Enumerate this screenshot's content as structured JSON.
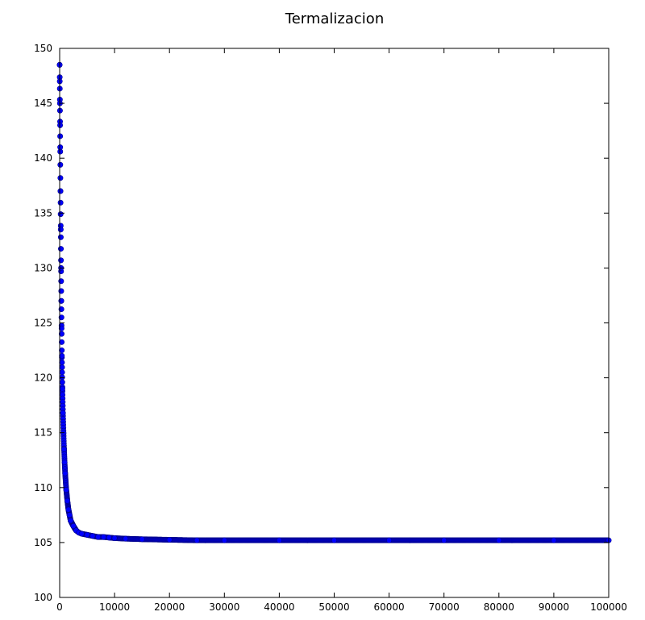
{
  "chart_data": {
    "type": "scatter",
    "title": "Termalizacion",
    "xlabel": "",
    "ylabel": "",
    "xlim": [
      0,
      100000
    ],
    "ylim": [
      100,
      150
    ],
    "grid": false,
    "legend": "none",
    "x_ticks": [
      "0",
      "10000",
      "20000",
      "30000",
      "40000",
      "50000",
      "60000",
      "70000",
      "80000",
      "90000",
      "100000"
    ],
    "y_ticks": [
      "100",
      "105",
      "110",
      "115",
      "120",
      "125",
      "130",
      "135",
      "140",
      "145",
      "150"
    ],
    "marker_color": "#0000ff",
    "series": [
      {
        "x": [
          0,
          20,
          50,
          80,
          100,
          150,
          200,
          250,
          300,
          350,
          400,
          500,
          600,
          700,
          800,
          900,
          1000,
          1200,
          1400,
          1600,
          1800,
          2000,
          2500,
          3000,
          3500,
          4000,
          5000,
          6000,
          7000,
          8000,
          9000,
          10000,
          12000,
          15000,
          20000,
          25000,
          30000,
          40000,
          50000,
          60000,
          70000,
          80000,
          90000,
          100000
        ],
        "y": [
          148.5,
          147.0,
          145.0,
          143.0,
          141.0,
          137.0,
          133.5,
          130.0,
          127.0,
          124.5,
          122.0,
          119.0,
          116.8,
          115.0,
          113.5,
          112.3,
          111.3,
          109.8,
          108.8,
          108.0,
          107.5,
          107.0,
          106.5,
          106.1,
          105.9,
          105.8,
          105.7,
          105.6,
          105.5,
          105.5,
          105.45,
          105.4,
          105.35,
          105.3,
          105.25,
          105.2,
          105.2,
          105.2,
          105.2,
          105.2,
          105.2,
          105.2,
          105.2,
          105.2
        ]
      }
    ]
  }
}
